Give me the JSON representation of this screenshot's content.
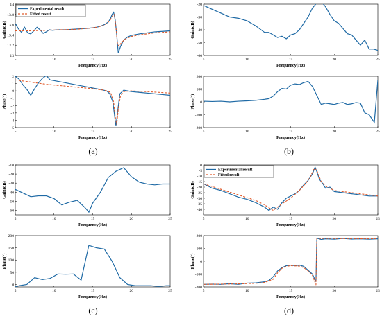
{
  "colors": {
    "experimental": "#1f6aa5",
    "fitted": "#e05a2b",
    "axis": "#000000",
    "frame": "#000000"
  },
  "panel_labels": [
    "(a)",
    "(b)",
    "(c)",
    "(d)"
  ],
  "chart_data": [
    {
      "panel": "(a)",
      "subplot": "gain",
      "type": "line",
      "xlabel": "Frequency(Hz)",
      "ylabel": "Gain(dB)",
      "xlim": [
        5,
        25
      ],
      "ylim": [
        13,
        14
      ],
      "xticks": [
        5,
        10,
        15,
        20,
        25
      ],
      "yticks": [
        13,
        13.2,
        13.4,
        13.6,
        13.8,
        14
      ],
      "grid": false,
      "legend_position": "top-left",
      "series": [
        {
          "name": "Experimental result",
          "style": "solid",
          "color": "#1f6aa5",
          "x": [
            5,
            5.4,
            5.8,
            6.2,
            6.6,
            7,
            7.4,
            7.8,
            8.2,
            8.6,
            9,
            9.4,
            9.8,
            10.5,
            11.5,
            12.5,
            13.5,
            14.5,
            15.5,
            16,
            16.5,
            17,
            17.3,
            17.5,
            17.7,
            17.9,
            18.1,
            18.3,
            18.6,
            19,
            19.5,
            20,
            21,
            22,
            23,
            24,
            25
          ],
          "y": [
            13.62,
            13.52,
            13.45,
            13.55,
            13.44,
            13.42,
            13.48,
            13.55,
            13.5,
            13.43,
            13.46,
            13.5,
            13.49,
            13.5,
            13.5,
            13.51,
            13.52,
            13.53,
            13.55,
            13.57,
            13.6,
            13.65,
            13.72,
            13.8,
            13.84,
            13.7,
            13.4,
            13.05,
            13.18,
            13.3,
            13.36,
            13.39,
            13.42,
            13.44,
            13.46,
            13.47,
            13.48
          ]
        },
        {
          "name": "Fitted result",
          "style": "dashed",
          "color": "#e05a2b",
          "x": [
            5,
            7,
            9,
            11,
            13,
            14.5,
            15.5,
            16.3,
            16.9,
            17.3,
            17.6,
            17.8,
            18,
            18.2,
            18.4,
            18.7,
            19.2,
            20,
            21,
            22,
            23,
            24,
            25
          ],
          "y": [
            13.48,
            13.48,
            13.49,
            13.5,
            13.51,
            13.53,
            13.55,
            13.58,
            13.63,
            13.7,
            13.78,
            13.8,
            13.55,
            13.22,
            13.18,
            13.25,
            13.32,
            13.37,
            13.4,
            13.42,
            13.44,
            13.45,
            13.46
          ]
        }
      ]
    },
    {
      "panel": "(a)",
      "subplot": "phase",
      "type": "line",
      "xlabel": "Frequency(Hz)",
      "ylabel": "Phase(°)",
      "xlim": [
        5,
        25
      ],
      "ylim": [
        -5,
        2
      ],
      "xticks": [
        5,
        10,
        15,
        20,
        25
      ],
      "yticks": [
        -5,
        -4,
        -3,
        -2,
        -1,
        0,
        1,
        2
      ],
      "grid": false,
      "series": [
        {
          "name": "Experimental result",
          "style": "solid",
          "color": "#1f6aa5",
          "x": [
            5,
            5.5,
            6,
            6.5,
            7,
            7.5,
            8,
            8.5,
            9,
            9.5,
            10,
            11,
            12,
            13,
            14,
            15,
            16,
            16.8,
            17.2,
            17.6,
            17.8,
            18,
            18.2,
            18.5,
            19,
            19.5,
            20,
            21,
            22,
            23,
            24,
            25
          ],
          "y": [
            2.0,
            1.6,
            0.8,
            0.2,
            -0.6,
            0.3,
            1.1,
            1.7,
            2.1,
            1.5,
            1.4,
            1.2,
            1.0,
            0.8,
            0.6,
            0.4,
            0.2,
            0.0,
            -0.4,
            -1.5,
            -3.2,
            -4.8,
            -3.0,
            -0.4,
            0.1,
            0.0,
            -0.1,
            -0.2,
            -0.3,
            -0.4,
            -0.5,
            -0.6
          ]
        },
        {
          "name": "Fitted result",
          "style": "dashed",
          "color": "#e05a2b",
          "x": [
            5,
            7,
            9,
            11,
            13,
            15,
            16.5,
            17.3,
            17.7,
            17.9,
            18.1,
            18.3,
            18.6,
            19,
            20,
            22,
            25
          ],
          "y": [
            1.5,
            1.2,
            0.9,
            0.7,
            0.5,
            0.3,
            0.1,
            -0.2,
            -1.5,
            -3.5,
            -4.6,
            -2.5,
            -0.6,
            -0.1,
            0.0,
            -0.1,
            -0.3
          ]
        }
      ]
    },
    {
      "panel": "(b)",
      "subplot": "gain",
      "type": "line",
      "xlabel": "Frequency(Hz)",
      "ylabel": "Gain(dB)",
      "xlim": [
        5,
        25
      ],
      "ylim": [
        -60,
        -20
      ],
      "xticks": [
        5,
        10,
        15,
        20,
        25
      ],
      "yticks": [
        -60,
        -50,
        -40,
        -30,
        -20
      ],
      "grid": false,
      "series": [
        {
          "name": "Experimental result",
          "style": "solid",
          "color": "#1f6aa5",
          "x": [
            5,
            6,
            7,
            8,
            9,
            10,
            11,
            12,
            12.5,
            13,
            13.5,
            14,
            14.5,
            15,
            15.5,
            16,
            16.5,
            17,
            17.5,
            18,
            18.5,
            19,
            19.5,
            20,
            20.5,
            21,
            21.5,
            22,
            22.5,
            23,
            23.5,
            24,
            24.5,
            25
          ],
          "y": [
            -21,
            -24,
            -27,
            -30,
            -31,
            -33,
            -37,
            -42,
            -42,
            -44,
            -46,
            -45,
            -47,
            -44,
            -43,
            -40,
            -35,
            -30,
            -23,
            -19,
            -18,
            -22,
            -28,
            -33,
            -35,
            -39,
            -43,
            -44,
            -48,
            -52,
            -48,
            -55,
            -55,
            -56
          ]
        }
      ]
    },
    {
      "panel": "(b)",
      "subplot": "phase",
      "type": "line",
      "xlabel": "Frequency(Hz)",
      "ylabel": "Phase(°)",
      "xlim": [
        5,
        25
      ],
      "ylim": [
        -200,
        200
      ],
      "xticks": [
        5,
        10,
        15,
        20,
        25
      ],
      "yticks": [
        -200,
        -100,
        0,
        100,
        200
      ],
      "grid": false,
      "series": [
        {
          "name": "Experimental result",
          "style": "solid",
          "color": "#1f6aa5",
          "x": [
            5,
            6,
            7,
            8,
            9,
            10,
            11,
            12,
            12.5,
            13,
            13.5,
            14,
            14.5,
            15,
            15.5,
            16,
            16.5,
            17,
            17.5,
            18,
            18.5,
            19,
            19.5,
            20,
            20.5,
            21,
            21.5,
            22,
            22.5,
            23,
            23.5,
            24,
            24.3,
            24.6,
            25
          ],
          "y": [
            5,
            3,
            5,
            0,
            5,
            8,
            12,
            20,
            25,
            45,
            80,
            105,
            100,
            130,
            140,
            135,
            150,
            160,
            120,
            50,
            -20,
            -10,
            -15,
            -20,
            -10,
            -5,
            -20,
            -15,
            -5,
            -10,
            -85,
            -100,
            -130,
            -160,
            170
          ]
        }
      ]
    },
    {
      "panel": "(c)",
      "subplot": "gain",
      "type": "line",
      "xlabel": "Frequency(Hz)",
      "ylabel": "Gain(dB)",
      "xlim": [
        5,
        25
      ],
      "ylim": [
        -65,
        -10
      ],
      "xticks": [
        5,
        10,
        15,
        20,
        25
      ],
      "yticks": [
        -60,
        -50,
        -40,
        -30,
        -20,
        -10
      ],
      "grid": false,
      "series": [
        {
          "name": "Experimental result",
          "style": "solid",
          "color": "#1f6aa5",
          "x": [
            5,
            6,
            7,
            8,
            9,
            10,
            11,
            12,
            13,
            14,
            14.5,
            15,
            16,
            17,
            18,
            19,
            20,
            21,
            22,
            23,
            24,
            25
          ],
          "y": [
            -37,
            -41,
            -45,
            -44,
            -44,
            -47,
            -54,
            -51,
            -49,
            -57,
            -62,
            -52,
            -40,
            -24,
            -17,
            -13,
            -23,
            -29,
            -31,
            -32,
            -31,
            -31
          ]
        }
      ]
    },
    {
      "panel": "(c)",
      "subplot": "phase",
      "type": "line",
      "xlabel": "Frequency(Hz)",
      "ylabel": "Phase(°)",
      "xlim": [
        5,
        25
      ],
      "ylim": [
        -10,
        200
      ],
      "xticks": [
        5,
        10,
        15,
        20,
        25
      ],
      "yticks": [
        0,
        50,
        100,
        150,
        200
      ],
      "grid": false,
      "series": [
        {
          "name": "Experimental result",
          "style": "solid",
          "color": "#1f6aa5",
          "x": [
            5,
            5.5,
            6.5,
            7.5,
            8.5,
            9.5,
            10.5,
            11.5,
            12.5,
            13.5,
            14.5,
            15.5,
            16.5,
            17.5,
            18.5,
            19.5,
            20.5,
            21.5,
            22.5,
            23.5,
            24.5,
            25
          ],
          "y": [
            -10,
            -5,
            0,
            28,
            20,
            25,
            43,
            42,
            43,
            18,
            160,
            150,
            145,
            95,
            28,
            0,
            -5,
            -5,
            -5,
            -8,
            -5,
            -5
          ]
        }
      ]
    },
    {
      "panel": "(d)",
      "subplot": "gain",
      "type": "line",
      "xlabel": "Frequency(Hz)",
      "ylabel": "Gain(dB)",
      "xlim": [
        5,
        25
      ],
      "ylim": [
        -45,
        0
      ],
      "xticks": [
        5,
        10,
        15,
        20,
        25
      ],
      "yticks": [
        -40,
        -35,
        -30,
        -25,
        -20,
        -15,
        -10,
        -5,
        0
      ],
      "grid": false,
      "legend_position": "top-left",
      "series": [
        {
          "name": "Experimental result",
          "style": "solid",
          "color": "#1f6aa5",
          "x": [
            5,
            6,
            7,
            8,
            9,
            10,
            11,
            11.5,
            12,
            12.5,
            13,
            13.5,
            14,
            14.5,
            15,
            15.5,
            16,
            16.5,
            17,
            17.5,
            17.8,
            18,
            18.3,
            18.7,
            19,
            19.5,
            20,
            21,
            22,
            23,
            24,
            25
          ],
          "y": [
            -17,
            -21,
            -23,
            -26,
            -29,
            -31,
            -34,
            -36,
            -38,
            -41,
            -38,
            -40,
            -34,
            -30,
            -28,
            -26,
            -23,
            -18,
            -14,
            -8,
            -2,
            -6,
            -13,
            -17,
            -21,
            -20,
            -24,
            -25,
            -26,
            -27,
            -28,
            -28
          ]
        },
        {
          "name": "Fitted result",
          "style": "dashed",
          "color": "#e05a2b",
          "x": [
            5,
            7,
            9,
            11,
            12,
            13,
            14,
            15,
            16,
            16.8,
            17.3,
            17.7,
            18,
            18.5,
            19,
            20,
            21,
            22,
            23,
            24,
            25
          ],
          "y": [
            -17,
            -22,
            -27,
            -32,
            -36,
            -41,
            -35,
            -30,
            -23,
            -16,
            -10,
            -3,
            -5,
            -15,
            -19,
            -23,
            -24,
            -25,
            -26,
            -27,
            -28
          ]
        }
      ]
    },
    {
      "panel": "(d)",
      "subplot": "phase",
      "type": "line",
      "xlabel": "Frequency(Hz)",
      "ylabel": "Phase(°)",
      "xlim": [
        5,
        25
      ],
      "ylim": [
        -200,
        200
      ],
      "xticks": [
        5,
        10,
        15,
        20,
        25
      ],
      "yticks": [
        -200,
        -100,
        0,
        100,
        200
      ],
      "grid": false,
      "series": [
        {
          "name": "Experimental result",
          "style": "solid",
          "color": "#1f6aa5",
          "x": [
            5,
            6,
            7,
            8,
            9,
            10,
            11,
            12,
            12.5,
            13,
            13.5,
            14,
            14.5,
            15,
            15.5,
            16,
            16.5,
            17,
            17.5,
            17.9,
            18,
            18.1,
            18.5,
            19,
            20,
            21,
            22,
            23,
            24,
            25
          ],
          "y": [
            -180,
            -178,
            -180,
            -175,
            -180,
            -170,
            -168,
            -160,
            -150,
            -120,
            -75,
            -50,
            -35,
            -30,
            -35,
            -30,
            -40,
            -70,
            -100,
            -160,
            175,
            178,
            170,
            175,
            172,
            178,
            173,
            175,
            172,
            175
          ]
        },
        {
          "name": "Fitted result",
          "style": "dashed",
          "color": "#e05a2b",
          "x": [
            5,
            7,
            9,
            11,
            12,
            13,
            13.5,
            14,
            14.5,
            15,
            16,
            16.5,
            17,
            17.5,
            17.9,
            18,
            18.3,
            19,
            21,
            23,
            25
          ],
          "y": [
            -180,
            -178,
            -176,
            -172,
            -165,
            -140,
            -90,
            -55,
            -40,
            -35,
            -38,
            -50,
            -75,
            -110,
            -185,
            175,
            178,
            178,
            177,
            176,
            176
          ]
        }
      ]
    }
  ]
}
